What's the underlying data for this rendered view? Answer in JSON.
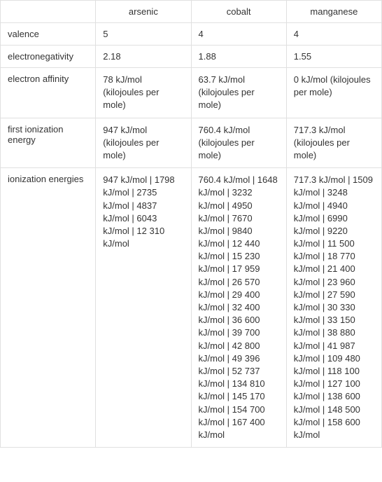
{
  "columns": [
    "",
    "arsenic",
    "cobalt",
    "manganese"
  ],
  "rows": [
    {
      "label": "valence",
      "arsenic": "5",
      "cobalt": "4",
      "manganese": "4"
    },
    {
      "label": "electronegativity",
      "arsenic": "2.18",
      "cobalt": "1.88",
      "manganese": "1.55"
    },
    {
      "label": "electron affinity",
      "arsenic": "78 kJ/mol (kilojoules per mole)",
      "cobalt": "63.7 kJ/mol (kilojoules per mole)",
      "manganese": "0 kJ/mol (kilojoules per mole)"
    },
    {
      "label": "first ionization energy",
      "arsenic": "947 kJ/mol (kilojoules per mole)",
      "cobalt": "760.4 kJ/mol (kilojoules per mole)",
      "manganese": "717.3 kJ/mol (kilojoules per mole)"
    },
    {
      "label": "ionization energies",
      "arsenic": "947 kJ/mol  |  1798 kJ/mol  |  2735 kJ/mol  |  4837 kJ/mol  |  6043 kJ/mol  |  12 310 kJ/mol",
      "cobalt": "760.4 kJ/mol  |  1648 kJ/mol  |  3232 kJ/mol  |  4950 kJ/mol  |  7670 kJ/mol  |  9840 kJ/mol  |  12 440 kJ/mol  |  15 230 kJ/mol  |  17 959 kJ/mol  |  26 570 kJ/mol  |  29 400 kJ/mol  |  32 400 kJ/mol  |  36 600 kJ/mol  |  39 700 kJ/mol  |  42 800 kJ/mol  |  49 396 kJ/mol  |  52 737 kJ/mol  |  134 810 kJ/mol  |  145 170 kJ/mol  |  154 700 kJ/mol  |  167 400 kJ/mol",
      "manganese": "717.3 kJ/mol  |  1509 kJ/mol  |  3248 kJ/mol  |  4940 kJ/mol  |  6990 kJ/mol  |  9220 kJ/mol  |  11 500 kJ/mol  |  18 770 kJ/mol  |  21 400 kJ/mol  |  23 960 kJ/mol  |  27 590 kJ/mol  |  30 330 kJ/mol  |  33 150 kJ/mol  |  38 880 kJ/mol  |  41 987 kJ/mol  |  109 480 kJ/mol  |  118 100 kJ/mol  |  127 100 kJ/mol  |  138 600 kJ/mol  |  148 500 kJ/mol  |  158 600 kJ/mol"
    }
  ],
  "styling": {
    "border_color": "#e0e0e0",
    "background_color": "#ffffff",
    "text_color": "#333333",
    "unit_color": "#888888",
    "font_size": 13,
    "cell_padding": "8px 10px"
  }
}
